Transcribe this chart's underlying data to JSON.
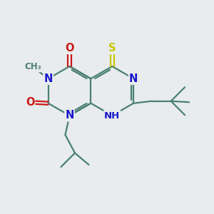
{
  "background_color": "#e8ecee",
  "bond_color": "#4a8070",
  "bond_width": 1.6,
  "atom_colors": {
    "N": "#1818cc",
    "O": "#cc1818",
    "S": "#c8c800",
    "C": "#4a8070"
  },
  "font_size": 10.5,
  "dbo": 0.09
}
